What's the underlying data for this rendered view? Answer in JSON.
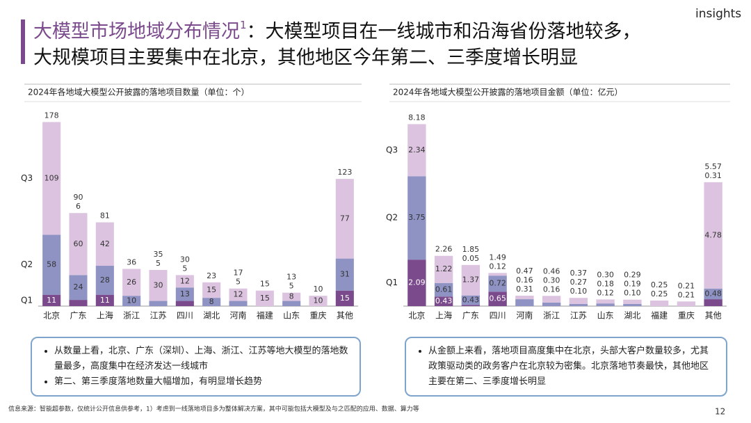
{
  "header": {
    "title_lead": "大模型市场地域分布情况",
    "title_sup": "1",
    "title_rest": "：大模型项目在一线城市和沿海省份落地较多，",
    "title_line2": "大规模项目主要集中在北京，其他地区今年第二、三季度增长明显",
    "logo": "insights"
  },
  "chart_data": [
    {
      "type": "stacked_bar",
      "title": "2024年各地域大模型公开披露的落地项目数量（单位：个）",
      "categories": [
        "北京",
        "广东",
        "上海",
        "浙江",
        "江苏",
        "四川",
        "湖北",
        "河南",
        "福建",
        "山东",
        "重庆",
        "其他"
      ],
      "series": [
        {
          "name": "Q1",
          "color": "#7b4a8c",
          "values": [
            11,
            6,
            11,
            null,
            null,
            5,
            null,
            null,
            null,
            null,
            null,
            15
          ]
        },
        {
          "name": "Q2",
          "color": "#8e93c4",
          "values": [
            58,
            24,
            28,
            10,
            5,
            13,
            8,
            5,
            null,
            5,
            null,
            31
          ]
        },
        {
          "name": "Q3",
          "color": "#dcc3e0",
          "values": [
            109,
            60,
            42,
            26,
            30,
            12,
            15,
            12,
            15,
            8,
            10,
            77
          ]
        }
      ],
      "totals": [
        178,
        90,
        81,
        36,
        35,
        30,
        23,
        17,
        15,
        13,
        10,
        123
      ],
      "ylim": [
        0,
        185
      ]
    },
    {
      "type": "stacked_bar",
      "title": "2024年各地域大模型公开披露的落地项目金额（单位：亿元）",
      "categories": [
        "北京",
        "上海",
        "广东",
        "四川",
        "河南",
        "浙江",
        "江苏",
        "山东",
        "湖北",
        "福建",
        "重庆",
        "其他"
      ],
      "series": [
        {
          "name": "Q1",
          "color": "#7b4a8c",
          "values": [
            2.09,
            0.43,
            0.05,
            0.65,
            null,
            null,
            null,
            null,
            null,
            null,
            null,
            0.31
          ],
          "value_labels": [
            "2.09",
            "0.43",
            "0.05",
            "0.65",
            null,
            null,
            null,
            null,
            null,
            null,
            null,
            "0.31"
          ]
        },
        {
          "name": "Q2",
          "color": "#8e93c4",
          "values": [
            3.75,
            0.61,
            0.43,
            0.72,
            0.31,
            0.16,
            0.1,
            0.12,
            0.1,
            null,
            null,
            0.48
          ],
          "value_labels": [
            "3.75",
            "0.61",
            "0.43",
            "0.72",
            "0.31",
            "0.16",
            "0.10",
            "0.12",
            "0.10",
            null,
            null,
            "0.48"
          ]
        },
        {
          "name": "Q3",
          "color": "#dcc3e0",
          "values": [
            2.34,
            1.22,
            1.37,
            0.12,
            0.16,
            0.3,
            0.27,
            0.18,
            0.19,
            0.25,
            0.21,
            4.78
          ],
          "value_labels": [
            "2.34",
            "1.22",
            "1.37",
            "0.12",
            "0.16",
            "0.30",
            "0.27",
            "0.18",
            "0.19",
            "0.25",
            "0.21",
            "4.78"
          ]
        }
      ],
      "totals": [
        8.18,
        2.26,
        1.85,
        1.49,
        0.47,
        0.46,
        0.37,
        0.3,
        0.29,
        0.25,
        0.21,
        5.57
      ],
      "total_labels": [
        "8.18",
        "2.26",
        "1.85",
        "1.49",
        "0.47",
        "0.46",
        "0.37",
        "0.30",
        "0.29",
        "0.25",
        "0.21",
        "5.57"
      ],
      "ylim": [
        0,
        8.6
      ]
    }
  ],
  "notes": [
    [
      "从数量上看，北京、广东（深圳）、上海、浙江、江苏等地大模型的落地数量最多，高度集中在经济发达一线城市",
      "第二、第三季度落地数量大幅增加，有明显增长趋势"
    ],
    [
      "从金额上来看，落地项目高度集中在北京，头部大客户数量较多，尤其政策驱动类的政务客户在北京较为密集。北京落地节奏最快，其他地区主要在第二、三季度增长明显"
    ]
  ],
  "footer": "信息来源：智能超参数，仅统计公开信息供参考，1）考虑到一线落地项目多为整体解决方案，其中可能包括大模型及与之匹配的应用、数据、算力等",
  "page_number": "12"
}
